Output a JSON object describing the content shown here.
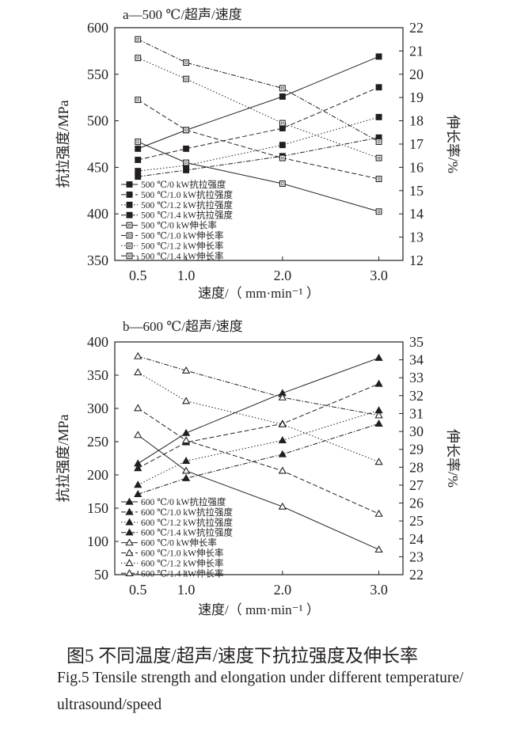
{
  "chart_data": [
    {
      "type": "line",
      "title": "a—500 ℃/超声/速度",
      "xlabel": "速度/（ mm·min⁻¹ ）",
      "ylabel": "抗拉强度/MPa",
      "y2label": "伸长率/%",
      "x": [
        0.5,
        1.0,
        2.0,
        3.0
      ],
      "xticks": [
        "0.5",
        "1.0",
        "2.0",
        "3.0"
      ],
      "xlim": [
        0.26,
        3.25
      ],
      "ylim": [
        350,
        600
      ],
      "yticks": [
        350,
        400,
        450,
        500,
        550,
        600
      ],
      "y2lim": [
        12,
        22
      ],
      "y2ticks": [
        12,
        13,
        14,
        15,
        16,
        17,
        18,
        19,
        20,
        21,
        22
      ],
      "grid": false,
      "legend": "bottom-left",
      "series": [
        {
          "name": "500 ℃/0 kW抗拉强度",
          "axis": "left",
          "marker": "filled-square",
          "line": "solid",
          "values": [
            470,
            490,
            526,
            569
          ]
        },
        {
          "name": "500 ℃/1.0 kW抗拉强度",
          "axis": "left",
          "marker": "filled-square",
          "line": "dashed",
          "values": [
            458,
            470,
            492,
            536
          ]
        },
        {
          "name": "500 ℃/1.2 kW抗拉强度",
          "axis": "left",
          "marker": "filled-square",
          "line": "dotted",
          "values": [
            446,
            452,
            474,
            504
          ]
        },
        {
          "name": "500 ℃/1.4 kW抗拉强度",
          "axis": "left",
          "marker": "filled-square",
          "line": "dash-dot",
          "values": [
            440,
            447,
            462,
            482
          ]
        },
        {
          "name": "500 ℃/0 kW伸长率",
          "axis": "right",
          "marker": "open-square",
          "line": "solid",
          "values": [
            17.1,
            16.2,
            15.3,
            14.1
          ]
        },
        {
          "name": "500 ℃/1.0 kW伸长率",
          "axis": "right",
          "marker": "open-square",
          "line": "dashed",
          "values": [
            18.9,
            17.6,
            16.4,
            15.5
          ]
        },
        {
          "name": "500 ℃/1.2 kW伸长率",
          "axis": "right",
          "marker": "open-square",
          "line": "dotted",
          "values": [
            20.7,
            19.8,
            17.9,
            16.4
          ]
        },
        {
          "name": "500 ℃/1.4 kW伸长率",
          "axis": "right",
          "marker": "open-square",
          "line": "dash-dot",
          "values": [
            21.5,
            20.5,
            19.4,
            17.1
          ]
        }
      ]
    },
    {
      "type": "line",
      "title": "b—600 ℃/超声/速度",
      "xlabel": "速度/（ mm·min⁻¹ ）",
      "ylabel": "抗拉强度/MPa",
      "y2label": "伸长率/%",
      "x": [
        0.5,
        1.0,
        2.0,
        3.0
      ],
      "xticks": [
        "0.5",
        "1.0",
        "2.0",
        "3.0"
      ],
      "xlim": [
        0.26,
        3.25
      ],
      "ylim": [
        50,
        400
      ],
      "yticks": [
        50,
        100,
        150,
        200,
        250,
        300,
        350,
        400
      ],
      "y2lim": [
        22,
        35
      ],
      "y2ticks": [
        22,
        23,
        24,
        25,
        26,
        27,
        28,
        29,
        30,
        31,
        32,
        33,
        34,
        35
      ],
      "grid": false,
      "legend": "bottom-left",
      "series": [
        {
          "name": "600 ℃/0 kW抗拉强度",
          "axis": "left",
          "marker": "filled-triangle",
          "line": "solid",
          "values": [
            217,
            263,
            323,
            376
          ]
        },
        {
          "name": "600 ℃/1.0 kW抗拉强度",
          "axis": "left",
          "marker": "filled-triangle",
          "line": "dashed",
          "values": [
            210,
            249,
            277,
            337
          ]
        },
        {
          "name": "600 ℃/1.2 kW抗拉强度",
          "axis": "left",
          "marker": "filled-triangle",
          "line": "dotted",
          "values": [
            185,
            221,
            252,
            297
          ]
        },
        {
          "name": "600 ℃/1.4 kW抗拉强度",
          "axis": "left",
          "marker": "filled-triangle",
          "line": "dash-dot",
          "values": [
            171,
            195,
            231,
            277
          ]
        },
        {
          "name": "600 ℃/0 kW伸长率",
          "axis": "right",
          "marker": "open-triangle",
          "line": "solid",
          "values": [
            29.8,
            27.8,
            25.8,
            23.4
          ]
        },
        {
          "name": "600 ℃/1.0 kW伸长率",
          "axis": "right",
          "marker": "open-triangle",
          "line": "dashed",
          "values": [
            31.3,
            29.5,
            27.8,
            25.4
          ]
        },
        {
          "name": "600 ℃/1.2 kW伸长率",
          "axis": "right",
          "marker": "open-triangle",
          "line": "dotted",
          "values": [
            33.3,
            31.7,
            30.4,
            28.3
          ]
        },
        {
          "name": "600 ℃/1.4 kW伸长率",
          "axis": "right",
          "marker": "open-triangle",
          "line": "dash-dot",
          "values": [
            34.2,
            33.4,
            31.9,
            30.9
          ]
        }
      ]
    }
  ],
  "caption": {
    "chinese": "图5  不同温度/超声/速度下抗拉强度及伸长率",
    "english_line1": "Fig.5  Tensile strength and elongation under different temperature/",
    "english_line2": "ultrasound/speed"
  }
}
